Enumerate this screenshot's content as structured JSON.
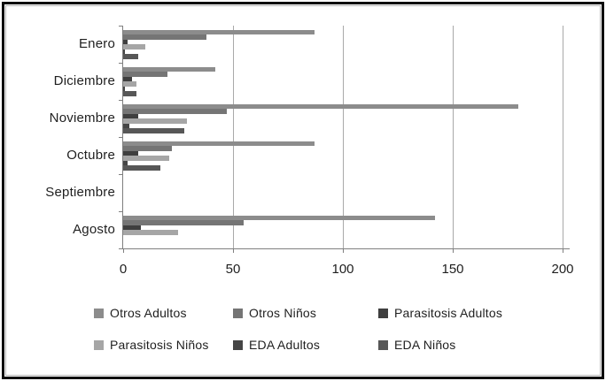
{
  "chart_data": {
    "type": "bar",
    "orientation": "horizontal",
    "title": "",
    "xlabel": "",
    "ylabel": "",
    "xlim": [
      0,
      200
    ],
    "x_ticks": [
      0,
      50,
      100,
      150,
      200
    ],
    "grid": true,
    "legend_position": "bottom",
    "categories": [
      "Enero",
      "Diciembre",
      "Noviembre",
      "Octubre",
      "Septiembre",
      "Agosto"
    ],
    "series": [
      {
        "name": "Otros Adultos",
        "color": "#8C8C8C",
        "values": [
          87,
          42,
          180,
          87,
          0,
          142
        ]
      },
      {
        "name": "Otros Niños",
        "color": "#757575",
        "values": [
          38,
          20,
          47,
          22,
          0,
          55
        ]
      },
      {
        "name": "Parasitosis Adultos",
        "color": "#3F3F3F",
        "values": [
          2,
          4,
          7,
          7,
          0,
          8
        ]
      },
      {
        "name": "Parasitosis Niños",
        "color": "#A6A6A6",
        "values": [
          10,
          6,
          29,
          21,
          0,
          25
        ]
      },
      {
        "name": "EDA Adultos",
        "color": "#454545",
        "values": [
          1,
          1,
          3,
          2,
          0,
          0
        ]
      },
      {
        "name": "EDA Niños",
        "color": "#575757",
        "values": [
          7,
          6,
          28,
          17,
          0,
          0
        ]
      }
    ],
    "axis_color": "#7f7f7f",
    "gridline_color": "#a9a9a9"
  }
}
